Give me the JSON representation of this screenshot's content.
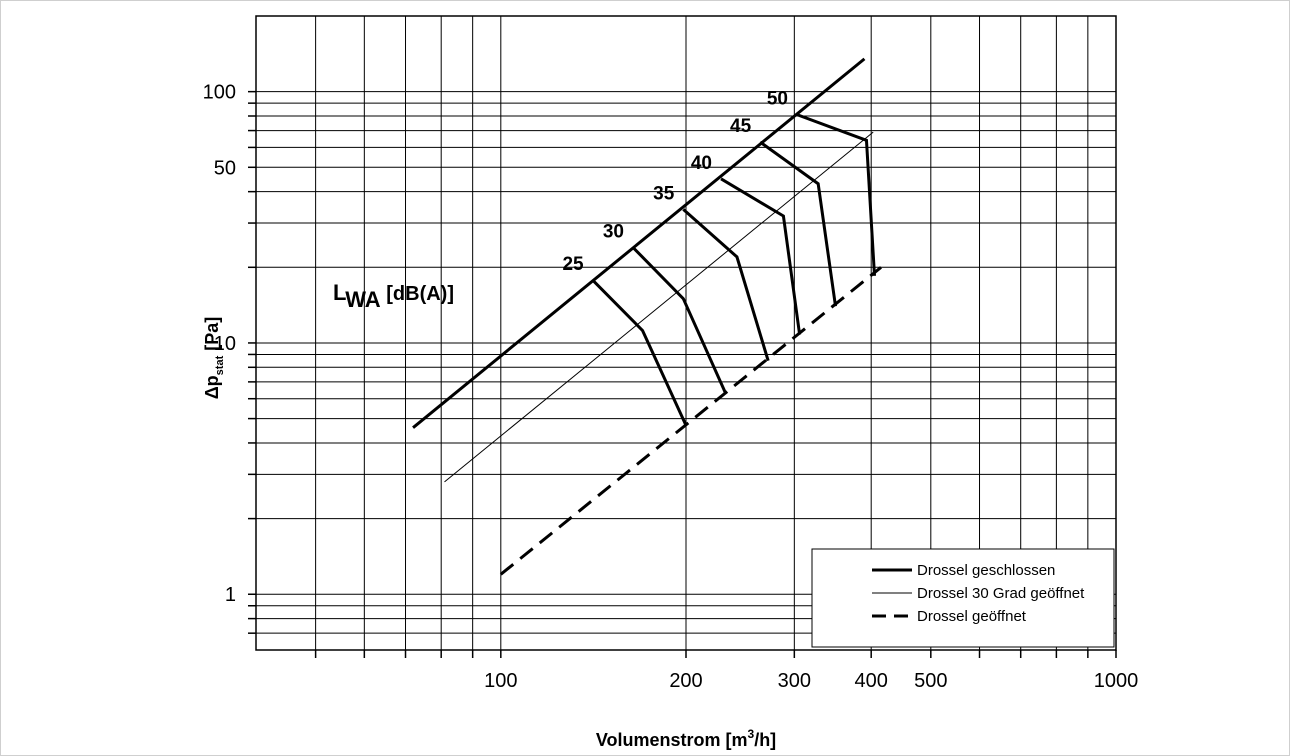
{
  "chart_data": {
    "type": "line",
    "xscale": "log",
    "yscale": "log",
    "xlim": [
      40,
      1000
    ],
    "ylim": [
      0.6,
      200
    ],
    "xlabel": "Volumenstrom [m³/h]",
    "ylabel": "Δp_stat [Pa]",
    "ylabel_parts": {
      "main": "Δp",
      "sub": "stat",
      "unit": " [Pa]"
    },
    "xlabel_parts": {
      "pre": "Volumenstrom [m",
      "sup": "3",
      "post": "/h]"
    },
    "annotation": {
      "main": "L",
      "sub": "WA",
      "unit": " [dB(A)]"
    },
    "x_tick_labels": [
      {
        "value": 100,
        "label": "100"
      },
      {
        "value": 200,
        "label": "200"
      },
      {
        "value": 300,
        "label": "300"
      },
      {
        "value": 400,
        "label": "400"
      },
      {
        "value": 500,
        "label": "500"
      },
      {
        "value": 1000,
        "label": "1000"
      }
    ],
    "y_tick_labels": [
      {
        "value": 1,
        "label": "1"
      },
      {
        "value": 10,
        "label": "10"
      },
      {
        "value": 50,
        "label": "50"
      },
      {
        "value": 100,
        "label": "100"
      }
    ],
    "grid": true,
    "legend_position": "bottom-right",
    "series": [
      {
        "name": "Drossel geschlossen",
        "style": "thick",
        "x": [
          72,
          390
        ],
        "y": [
          4.6,
          135
        ]
      },
      {
        "name": "Drossel 30 Grad geöffnet",
        "style": "thin",
        "x": [
          81,
          403
        ],
        "y": [
          2.8,
          69
        ]
      },
      {
        "name": "Drossel geöffnet",
        "style": "dashed",
        "x": [
          100,
          415
        ],
        "y": [
          1.2,
          20
        ]
      }
    ],
    "isolines": [
      {
        "label": "25",
        "x": [
          141,
          170,
          200
        ],
        "y": [
          17.8,
          11.2,
          4.7
        ]
      },
      {
        "label": "30",
        "x": [
          164,
          198,
          232
        ],
        "y": [
          24,
          15,
          6.3
        ]
      },
      {
        "label": "35",
        "x": [
          198,
          242,
          272
        ],
        "y": [
          34,
          22,
          8.5
        ]
      },
      {
        "label": "40",
        "x": [
          228,
          288,
          306
        ],
        "y": [
          45,
          32,
          10.8
        ]
      },
      {
        "label": "45",
        "x": [
          264,
          328,
          350
        ],
        "y": [
          63,
          43,
          14
        ]
      },
      {
        "label": "50",
        "x": [
          303,
          393,
          405
        ],
        "y": [
          81,
          64,
          18.5
        ]
      }
    ]
  }
}
